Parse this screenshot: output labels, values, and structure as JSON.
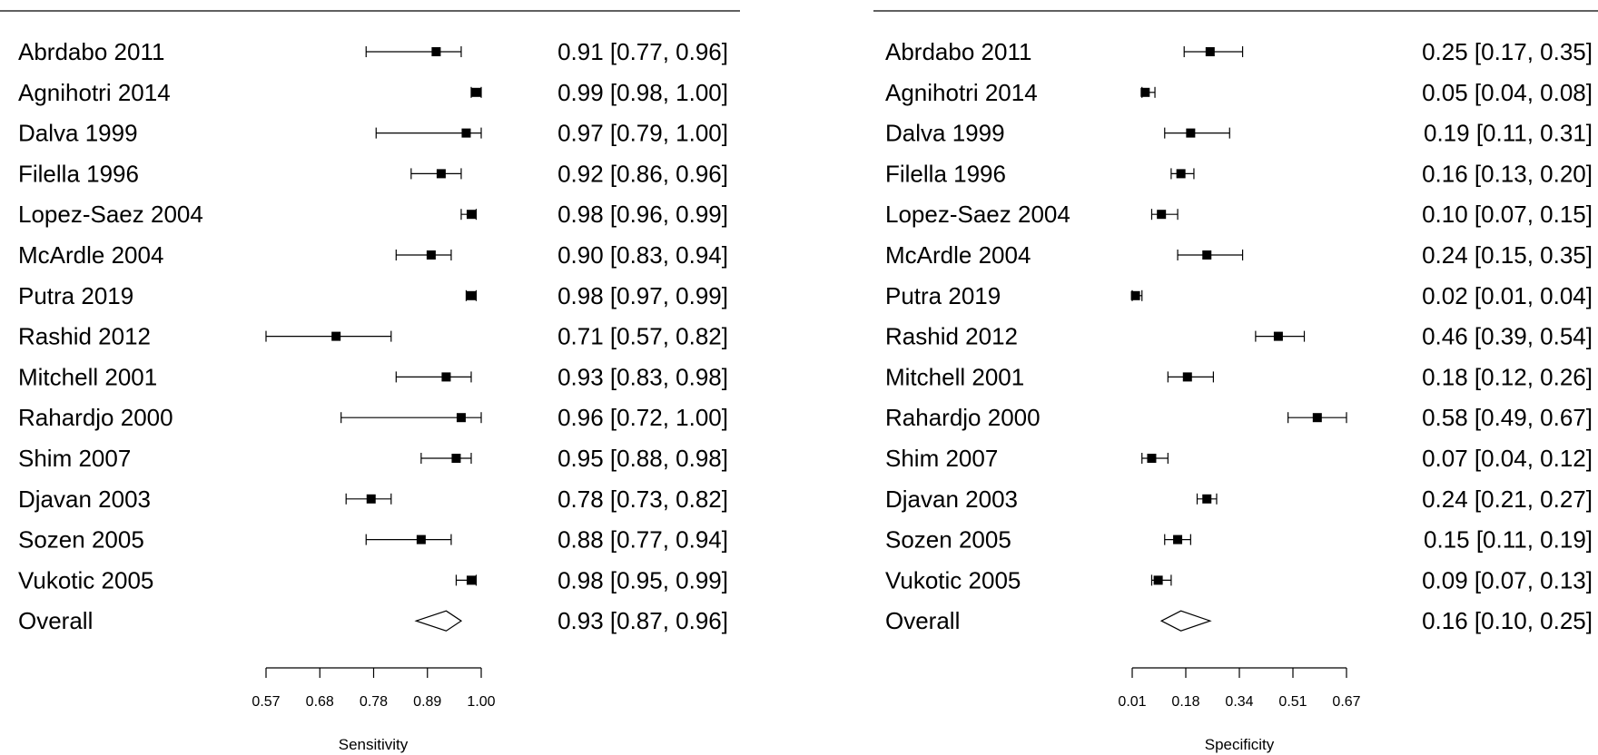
{
  "chart_data": [
    {
      "type": "forest",
      "xlabel": "Sensitivity",
      "xlim": [
        0.57,
        1.0
      ],
      "xticks": [
        "0.57",
        "0.68",
        "0.78",
        "0.89",
        "1.00"
      ],
      "studies": [
        {
          "label": "Abrdabo 2011",
          "est": 0.91,
          "lo": 0.77,
          "hi": 0.96,
          "text": "0.91 [0.77, 0.96]"
        },
        {
          "label": "Agnihotri 2014",
          "est": 0.99,
          "lo": 0.98,
          "hi": 1.0,
          "text": "0.99 [0.98, 1.00]"
        },
        {
          "label": "Dalva 1999",
          "est": 0.97,
          "lo": 0.79,
          "hi": 1.0,
          "text": "0.97 [0.79, 1.00]"
        },
        {
          "label": "Filella 1996",
          "est": 0.92,
          "lo": 0.86,
          "hi": 0.96,
          "text": "0.92 [0.86, 0.96]"
        },
        {
          "label": "Lopez-Saez 2004",
          "est": 0.98,
          "lo": 0.96,
          "hi": 0.99,
          "text": "0.98 [0.96, 0.99]"
        },
        {
          "label": "McArdle 2004",
          "est": 0.9,
          "lo": 0.83,
          "hi": 0.94,
          "text": "0.90 [0.83, 0.94]"
        },
        {
          "label": "Putra 2019",
          "est": 0.98,
          "lo": 0.97,
          "hi": 0.99,
          "text": "0.98 [0.97, 0.99]"
        },
        {
          "label": "Rashid 2012",
          "est": 0.71,
          "lo": 0.57,
          "hi": 0.82,
          "text": "0.71 [0.57, 0.82]"
        },
        {
          "label": "Mitchell 2001",
          "est": 0.93,
          "lo": 0.83,
          "hi": 0.98,
          "text": "0.93 [0.83, 0.98]"
        },
        {
          "label": "Rahardjo 2000",
          "est": 0.96,
          "lo": 0.72,
          "hi": 1.0,
          "text": "0.96 [0.72, 1.00]"
        },
        {
          "label": "Shim 2007",
          "est": 0.95,
          "lo": 0.88,
          "hi": 0.98,
          "text": "0.95 [0.88, 0.98]"
        },
        {
          "label": "Djavan 2003",
          "est": 0.78,
          "lo": 0.73,
          "hi": 0.82,
          "text": "0.78 [0.73, 0.82]"
        },
        {
          "label": "Sozen 2005",
          "est": 0.88,
          "lo": 0.77,
          "hi": 0.94,
          "text": "0.88 [0.77, 0.94]"
        },
        {
          "label": "Vukotic 2005",
          "est": 0.98,
          "lo": 0.95,
          "hi": 0.99,
          "text": "0.98 [0.95, 0.99]"
        }
      ],
      "overall": {
        "label": "Overall",
        "est": 0.93,
        "lo": 0.87,
        "hi": 0.96,
        "text": "0.93 [0.87, 0.96]"
      }
    },
    {
      "type": "forest",
      "xlabel": "Specificity",
      "xlim": [
        0.01,
        0.67
      ],
      "xticks": [
        "0.01",
        "0.18",
        "0.34",
        "0.51",
        "0.67"
      ],
      "studies": [
        {
          "label": "Abrdabo 2011",
          "est": 0.25,
          "lo": 0.17,
          "hi": 0.35,
          "text": "0.25 [0.17, 0.35]"
        },
        {
          "label": "Agnihotri 2014",
          "est": 0.05,
          "lo": 0.04,
          "hi": 0.08,
          "text": "0.05 [0.04, 0.08]"
        },
        {
          "label": "Dalva 1999",
          "est": 0.19,
          "lo": 0.11,
          "hi": 0.31,
          "text": "0.19 [0.11, 0.31]"
        },
        {
          "label": "Filella 1996",
          "est": 0.16,
          "lo": 0.13,
          "hi": 0.2,
          "text": "0.16 [0.13, 0.20]"
        },
        {
          "label": "Lopez-Saez 2004",
          "est": 0.1,
          "lo": 0.07,
          "hi": 0.15,
          "text": "0.10 [0.07, 0.15]"
        },
        {
          "label": "McArdle 2004",
          "est": 0.24,
          "lo": 0.15,
          "hi": 0.35,
          "text": "0.24 [0.15, 0.35]"
        },
        {
          "label": "Putra 2019",
          "est": 0.02,
          "lo": 0.01,
          "hi": 0.04,
          "text": "0.02 [0.01, 0.04]"
        },
        {
          "label": "Rashid 2012",
          "est": 0.46,
          "lo": 0.39,
          "hi": 0.54,
          "text": "0.46 [0.39, 0.54]"
        },
        {
          "label": "Mitchell 2001",
          "est": 0.18,
          "lo": 0.12,
          "hi": 0.26,
          "text": "0.18 [0.12, 0.26]"
        },
        {
          "label": "Rahardjo 2000",
          "est": 0.58,
          "lo": 0.49,
          "hi": 0.67,
          "text": "0.58 [0.49, 0.67]"
        },
        {
          "label": "Shim 2007",
          "est": 0.07,
          "lo": 0.04,
          "hi": 0.12,
          "text": "0.07 [0.04, 0.12]"
        },
        {
          "label": "Djavan 2003",
          "est": 0.24,
          "lo": 0.21,
          "hi": 0.27,
          "text": "0.24 [0.21, 0.27]"
        },
        {
          "label": "Sozen 2005",
          "est": 0.15,
          "lo": 0.11,
          "hi": 0.19,
          "text": "0.15 [0.11, 0.19]"
        },
        {
          "label": "Vukotic 2005",
          "est": 0.09,
          "lo": 0.07,
          "hi": 0.13,
          "text": "0.09 [0.07, 0.13]"
        }
      ],
      "overall": {
        "label": "Overall",
        "est": 0.16,
        "lo": 0.1,
        "hi": 0.25,
        "text": "0.16 [0.10, 0.25]"
      }
    }
  ]
}
